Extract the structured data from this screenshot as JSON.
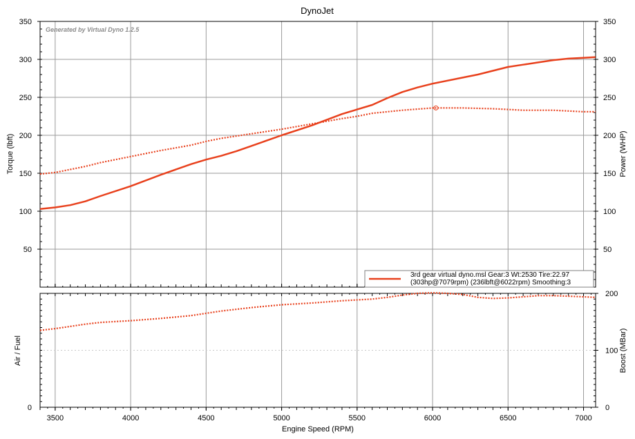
{
  "chart_data": [
    {
      "type": "line",
      "title": "DynoJet",
      "watermark": "Generated by Virtual Dyno 1.2.5",
      "ylabel_left": "Torque (lbft)",
      "ylabel_right": "Power (WHP)",
      "xlim": [
        3400,
        7080
      ],
      "ylim": [
        0,
        350
      ],
      "y_ticks": [
        50,
        100,
        150,
        200,
        250,
        300,
        350
      ],
      "grid": true,
      "legend": {
        "placement": "bottom-right",
        "line1": "3rd gear virtual dyno.msl Gear:3 Wt:2530 Tire:22.97",
        "line2": "(303hp@7079rpm) (236lbft@6022rpm) Smoothing:3"
      },
      "peak_marker": {
        "x": 6022,
        "y": 236
      },
      "series": [
        {
          "style": "solid",
          "color": "#e8401c",
          "points": [
            [
              3400,
              103
            ],
            [
              3500,
              105
            ],
            [
              3600,
              108
            ],
            [
              3700,
              113
            ],
            [
              3800,
              120
            ],
            [
              4000,
              133
            ],
            [
              4200,
              148
            ],
            [
              4400,
              162
            ],
            [
              4500,
              168
            ],
            [
              4600,
              173
            ],
            [
              4700,
              179
            ],
            [
              4800,
              186
            ],
            [
              5000,
              200
            ],
            [
              5200,
              213
            ],
            [
              5400,
              228
            ],
            [
              5500,
              234
            ],
            [
              5600,
              240
            ],
            [
              5700,
              249
            ],
            [
              5800,
              257
            ],
            [
              5900,
              263
            ],
            [
              6000,
              268
            ],
            [
              6200,
              276
            ],
            [
              6300,
              280
            ],
            [
              6400,
              285
            ],
            [
              6500,
              290
            ],
            [
              6600,
              293
            ],
            [
              6700,
              296
            ],
            [
              6800,
              299
            ],
            [
              6900,
              301
            ],
            [
              7000,
              302
            ],
            [
              7079,
              303
            ]
          ]
        },
        {
          "style": "dotted",
          "color": "#e8401c",
          "points": [
            [
              3400,
              149
            ],
            [
              3500,
              151
            ],
            [
              3600,
              155
            ],
            [
              3700,
              159
            ],
            [
              3800,
              164
            ],
            [
              4000,
              172
            ],
            [
              4200,
              180
            ],
            [
              4400,
              187
            ],
            [
              4500,
              192
            ],
            [
              4600,
              196
            ],
            [
              4800,
              202
            ],
            [
              5000,
              208
            ],
            [
              5200,
              215
            ],
            [
              5400,
              222
            ],
            [
              5500,
              225
            ],
            [
              5600,
              229
            ],
            [
              5800,
              233
            ],
            [
              6000,
              236
            ],
            [
              6200,
              236
            ],
            [
              6400,
              235
            ],
            [
              6500,
              234
            ],
            [
              6600,
              233
            ],
            [
              6800,
              233
            ],
            [
              7000,
              231
            ],
            [
              7080,
              231
            ]
          ]
        }
      ]
    },
    {
      "type": "line",
      "ylabel_left": "Air / Fuel",
      "ylabel_right": "Boost (MBar)",
      "xlabel": "Engine Speed (RPM)",
      "xlim": [
        3400,
        7080
      ],
      "ylim": [
        0,
        200
      ],
      "y_ticks": [
        0,
        100,
        200
      ],
      "x_ticks": [
        3500,
        4000,
        4500,
        5000,
        5500,
        6000,
        6500,
        7000
      ],
      "grid": true,
      "series": [
        {
          "style": "dotted",
          "color": "#e8401c",
          "points": [
            [
              3400,
              135
            ],
            [
              3500,
              138
            ],
            [
              3600,
              142
            ],
            [
              3700,
              146
            ],
            [
              3800,
              149
            ],
            [
              4000,
              152
            ],
            [
              4200,
              156
            ],
            [
              4400,
              161
            ],
            [
              4500,
              165
            ],
            [
              4600,
              169
            ],
            [
              4800,
              175
            ],
            [
              5000,
              180
            ],
            [
              5200,
              183
            ],
            [
              5400,
              187
            ],
            [
              5600,
              190
            ],
            [
              5700,
              193
            ],
            [
              5800,
              197
            ],
            [
              5900,
              200
            ],
            [
              6000,
              201
            ],
            [
              6100,
              200
            ],
            [
              6200,
              198
            ],
            [
              6300,
              193
            ],
            [
              6400,
              191
            ],
            [
              6500,
              192
            ],
            [
              6600,
              194
            ],
            [
              6700,
              196
            ],
            [
              6800,
              196
            ],
            [
              6900,
              195
            ],
            [
              7000,
              194
            ],
            [
              7080,
              193
            ]
          ]
        }
      ]
    }
  ]
}
